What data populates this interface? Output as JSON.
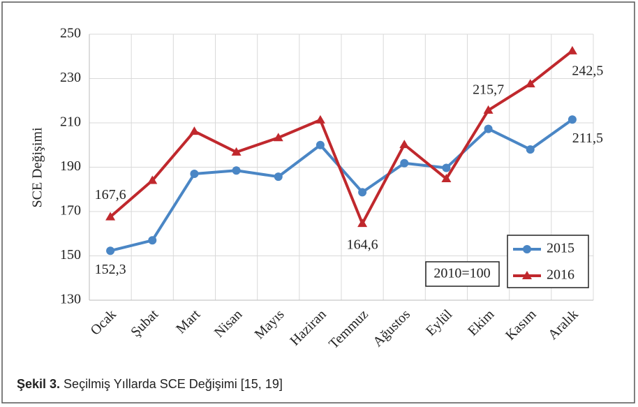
{
  "chart_data": {
    "type": "line",
    "ylabel": "SCE Değişimi",
    "categories": [
      "Ocak",
      "Şubat",
      "Mart",
      "Nisan",
      "Mayıs",
      "Haziran",
      "Temmuz",
      "Ağustos",
      "Eylül",
      "Ekim",
      "Kasım",
      "Aralık"
    ],
    "series": [
      {
        "name": "2015",
        "color": "#4a86c5",
        "marker": "circle",
        "values": [
          152.3,
          157,
          187,
          188.5,
          185.7,
          200,
          178.7,
          191.8,
          189.7,
          207.3,
          198,
          211.5
        ],
        "value_labels": [
          "152,3",
          null,
          null,
          null,
          null,
          null,
          null,
          null,
          null,
          null,
          null,
          "211,5"
        ]
      },
      {
        "name": "2016",
        "color": "#c0282d",
        "marker": "triangle",
        "values": [
          167.6,
          184,
          206.2,
          196.8,
          203.3,
          211.3,
          164.6,
          200.2,
          184.8,
          215.7,
          227.6,
          242.5
        ],
        "value_labels": [
          "167,6",
          null,
          null,
          null,
          null,
          null,
          "164,6",
          null,
          null,
          "215,7",
          null,
          "242,5"
        ]
      }
    ],
    "ylim": [
      130,
      250
    ],
    "yticks": [
      130,
      150,
      170,
      190,
      210,
      230,
      250
    ],
    "grid": true,
    "legend": "lower right",
    "annotation": "2010=100",
    "caption_label": "Şekil 3.",
    "caption_text": " Seçilmiş Yıllarda SCE Değişimi [15, 19]"
  }
}
